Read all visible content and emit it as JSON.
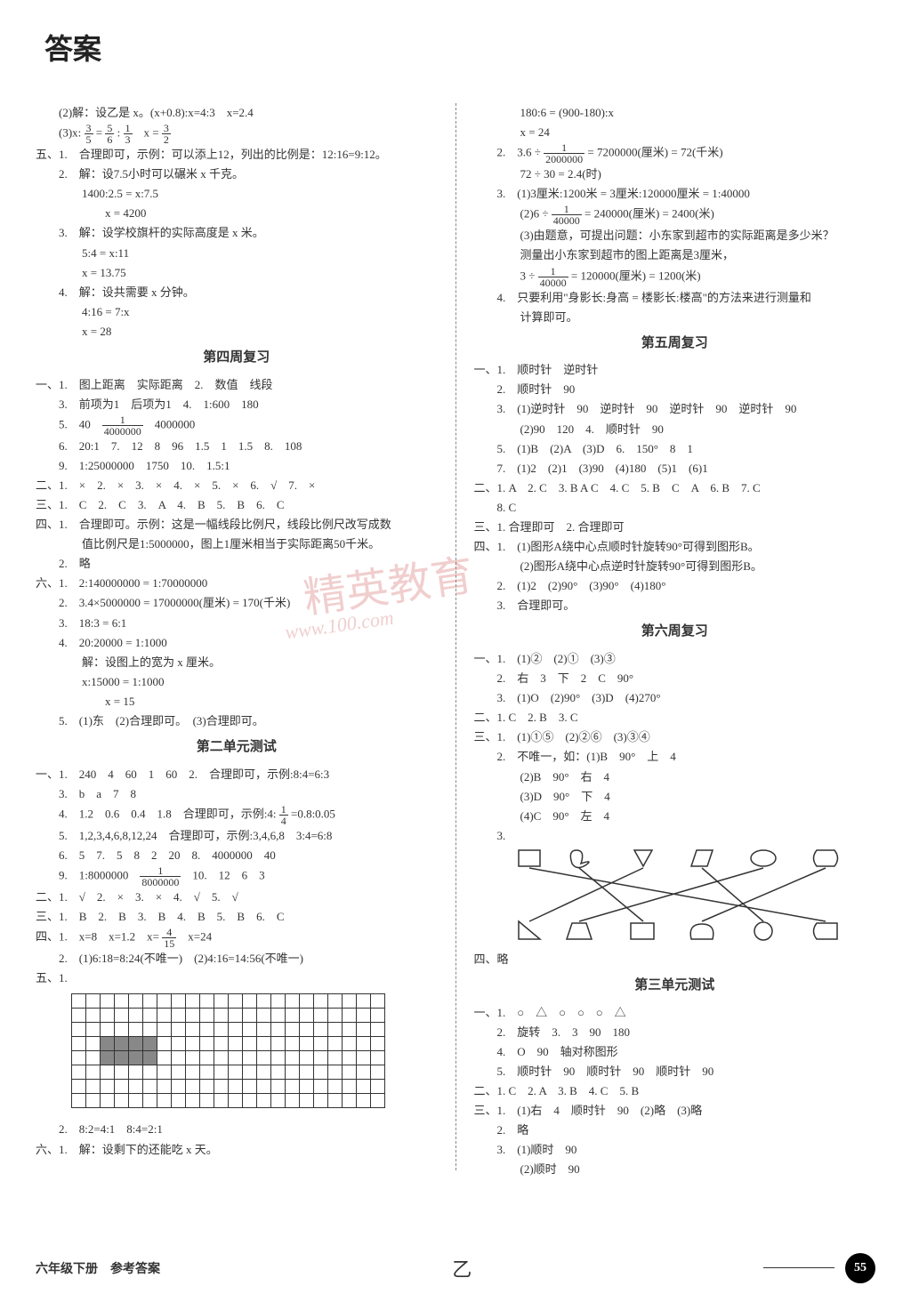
{
  "page": {
    "title": "答案",
    "footer_left": "六年级下册　参考答案",
    "footer_mid": "乙",
    "page_number": "55",
    "watermark": "精英教育",
    "watermark_sub": "www.100.com"
  },
  "left": {
    "preA": [
      "　　(2)解：设乙是 x。(x+0.8):x=4:3　x=2.4",
      "　　(3)x: 3/5 = 5/6 : 1/3　x = 3/2",
      "五、1.　合理即可，示例：可以添上12，列出的比例是：12:16=9:12。",
      "　　2.　解：设7.5小时可以碾米 x 千克。",
      "　　　　1400:2.5 = x:7.5",
      "　　　　　　x = 4200",
      "　　3.　解：设学校旗杆的实际高度是 x 米。",
      "　　　　5:4 = x:11",
      "　　　　x = 13.75",
      "　　4.　解：设共需要 x 分钟。",
      "　　　　4:16 = 7:x",
      "　　　　x = 28"
    ],
    "sec4_title": "第四周复习",
    "sec4": [
      "一、1.　图上距离　实际距离　2.　数值　线段",
      "　　3.　前项为1　后项为1　4.　1:600　180",
      "　　5.　40　1/4000000　4000000",
      "　　6.　20:1　7.　12　8　96　1.5　1　1.5　8.　108",
      "　　9.　1:25000000　1750　10.　1.5:1",
      "二、1.　×　2.　×　3.　×　4.　×　5.　×　6.　√　7.　×",
      "三、1.　C　2.　C　3.　A　4.　B　5.　B　6.　C",
      "四、1.　合理即可。示例：这是一幅线段比例尺，线段比例尺改写成数",
      "　　　　值比例尺是1:5000000，图上1厘米相当于实际距离50千米。",
      "　　2.　略",
      "六、1.　2:140000000 = 1:70000000",
      "　　2.　3.4×5000000 = 17000000(厘米) = 170(千米)",
      "　　3.　18:3 = 6:1",
      "　　4.　20:20000 = 1:1000",
      "　　　　解：设图上的宽为 x 厘米。",
      "　　　　x:15000 = 1:1000",
      "　　　　　　x = 15",
      "　　5.　(1)东　(2)合理即可。　(3)合理即可。"
    ],
    "unit2_title": "第二单元测试",
    "unit2": [
      "一、1.　240　4　60　1　60　2.　合理即可，示例:8:4=6:3",
      "　　3.　b　a　7　8",
      "　　4.　1.2　0.6　0.4　1.8　合理即可，示例:4: 1/4 =0.8:0.05",
      "　　5.　1,2,3,4,6,8,12,24　合理即可，示例:3,4,6,8　3:4=6:8",
      "　　6.　5　7.　5　8　2　20　8.　4000000　40",
      "　　9.　1:8000000　1/8000000　10.　12　6　3",
      "二、1.　√　2.　×　3.　×　4.　√　5.　√",
      "三、1.　B　2.　B　3.　B　4.　B　5.　B　6.　C",
      "四、1.　x=8　x=1.2　x= 4/15　x=24",
      "　　2.　(1)6:18=8:24(不唯一)　(2)4:16=14:56(不唯一)",
      "五、1."
    ],
    "postGrid": [
      "　　2.　8:2=4:1　8:4=2:1",
      "六、1.　解：设剩下的还能吃 x 天。"
    ],
    "grid": {
      "rows": 8,
      "cols": 22,
      "fill": [
        [
          3,
          2
        ],
        [
          3,
          3
        ],
        [
          3,
          4
        ],
        [
          3,
          5
        ],
        [
          4,
          2
        ],
        [
          4,
          3
        ],
        [
          4,
          4
        ],
        [
          4,
          5
        ]
      ]
    }
  },
  "right": {
    "preA": [
      "　　　　180:6 = (900-180):x",
      "　　　　x = 24",
      "　　2.　3.6 ÷ 1/2000000 = 7200000(厘米) = 72(千米)",
      "　　　　72 ÷ 30 = 2.4(时)",
      "　　3.　(1)3厘米:1200米 = 3厘米:120000厘米 = 1:40000",
      "　　　　(2)6 ÷ 1/40000 = 240000(厘米) = 2400(米)",
      "　　　　(3)由题意，可提出问题：小东家到超市的实际距离是多少米？",
      "　　　　测量出小东家到超市的图上距离是3厘米，",
      "　　　　3 ÷ 1/40000 = 120000(厘米) = 1200(米)",
      "　　4.　只要利用\"身影长:身高 = 楼影长:楼高\"的方法来进行测量和",
      "　　　　计算即可。"
    ],
    "sec5_title": "第五周复习",
    "sec5": [
      "一、1.　顺时针　逆时针",
      "　　2.　顺时针　90",
      "　　3.　(1)逆时针　90　逆时针　90　逆时针　90　逆时针　90",
      "　　　　(2)90　120　4.　顺时针　90",
      "　　5.　(1)B　(2)A　(3)D　6.　150°　8　1",
      "　　7.　(1)2　(2)1　(3)90　(4)180　(5)1　(6)1",
      "二、1. A　2. C　3. B A C　4. C　5. B　C　A　6. B　7. C",
      "　　8. C",
      "三、1. 合理即可　2. 合理即可",
      "四、1.　(1)图形A绕中心点顺时针旋转90°可得到图形B。",
      "　　　　(2)图形A绕中心点逆时针旋转90°可得到图形B。",
      "　　2.　(1)2　(2)90°　(3)90°　(4)180°",
      "　　3.　合理即可。"
    ],
    "sec6_title": "第六周复习",
    "sec6": [
      "一、1.　(1)②　(2)①　(3)③",
      "　　2.　右　3　下　2　C　90°",
      "　　3.　(1)O　(2)90°　(3)D　(4)270°",
      "二、1. C　2. B　3. C",
      "三、1.　(1)①⑤　(2)②⑥　(3)③④",
      "　　2.　不唯一，如：(1)B　90°　上　4",
      "　　　　(2)B　90°　右　4",
      "　　　　(3)D　90°　下　4",
      "　　　　(4)C　90°　左　4",
      "　　3."
    ],
    "postDiagram": [
      "四、略"
    ],
    "unit3_title": "第三单元测试",
    "unit3": [
      "一、1.　○　△　○　○　○　△",
      "　　2.　旋转　3.　3　90　180",
      "　　4.　O　90　轴对称图形",
      "　　5.　顺时针　90　顺时针　90　顺时针　90",
      "二、1. C　2. A　3. B　4. C　5. B",
      "三、1.　(1)右　4　顺时针　90　(2)略　(3)略",
      "　　2.　略",
      "　　3.　(1)顺时　90",
      "　　　　(2)顺时　90"
    ]
  }
}
